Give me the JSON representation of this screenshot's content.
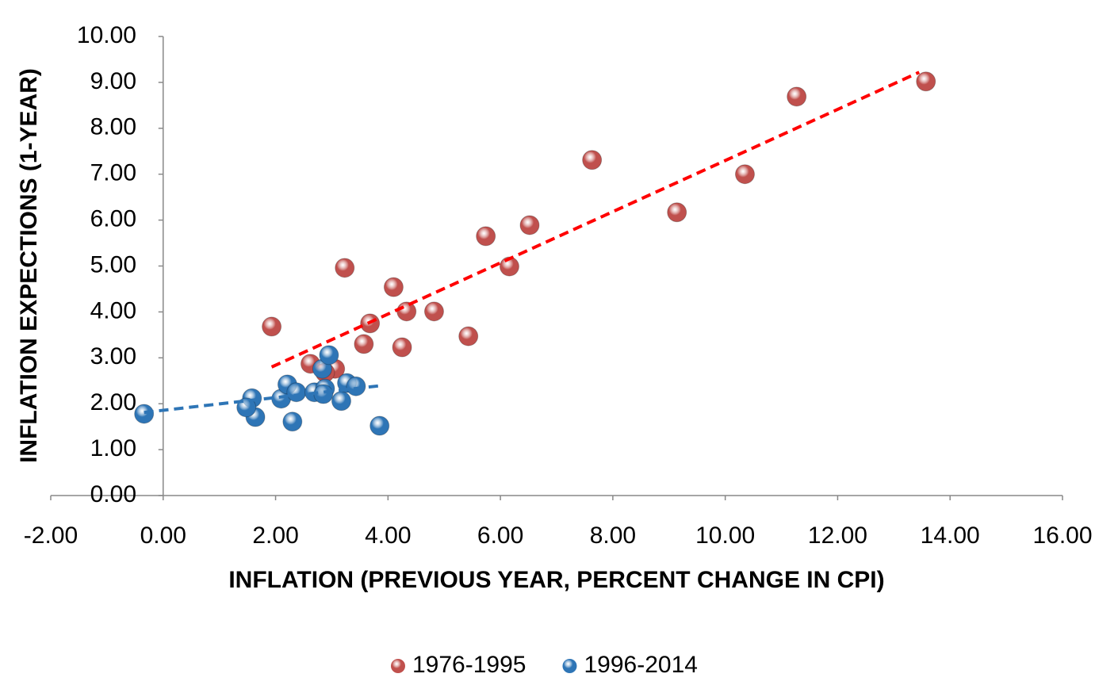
{
  "chart_data": {
    "type": "scatter",
    "x_label": "INFLATION (PREVIOUS YEAR, PERCENT CHANGE IN CPI)",
    "y_label": "INFLATION EXPECTIONS (1-YEAR)",
    "xlim": [
      -2,
      16
    ],
    "xticks": [
      {
        "value": -2,
        "label": "-2.00"
      },
      {
        "value": 0,
        "label": "0.00"
      },
      {
        "value": 2,
        "label": "2.00"
      },
      {
        "value": 4,
        "label": "4.00"
      },
      {
        "value": 6,
        "label": "6.00"
      },
      {
        "value": 8,
        "label": "8.00"
      },
      {
        "value": 10,
        "label": "10.00"
      },
      {
        "value": 12,
        "label": "12.00"
      },
      {
        "value": 14,
        "label": "14.00"
      },
      {
        "value": 16,
        "label": "16.00"
      }
    ],
    "ylim": [
      0,
      10
    ],
    "yticks": [
      {
        "value": 0,
        "label": "0.00"
      },
      {
        "value": 1,
        "label": "1.00"
      },
      {
        "value": 2,
        "label": "2.00"
      },
      {
        "value": 3,
        "label": "3.00"
      },
      {
        "value": 4,
        "label": "4.00"
      },
      {
        "value": 5,
        "label": "5.00"
      },
      {
        "value": 6,
        "label": "6.00"
      },
      {
        "value": 7,
        "label": "7.00"
      },
      {
        "value": 8,
        "label": "8.00"
      },
      {
        "value": 9,
        "label": "9.00"
      },
      {
        "value": 10,
        "label": "10.00"
      }
    ],
    "legend": "bottom",
    "series": [
      {
        "name": "1976-1995",
        "color": "#c0504d",
        "x": [
          1.93,
          3.23,
          4.1,
          3.68,
          3.57,
          4.33,
          4.82,
          4.25,
          5.43,
          5.74,
          6.16,
          6.52,
          7.63,
          9.14,
          10.35,
          11.27,
          13.57,
          2.62,
          3.06,
          2.88
        ],
        "values": [
          3.68,
          4.96,
          4.54,
          3.75,
          3.3,
          4.01,
          4.01,
          3.23,
          3.47,
          5.65,
          4.99,
          5.89,
          7.31,
          6.17,
          7.0,
          8.69,
          9.02,
          2.87,
          2.76,
          2.68
        ],
        "trendline": {
          "color": "#ff0000",
          "x": [
            1.93,
            13.45
          ],
          "y": [
            2.8,
            9.22
          ]
        }
      },
      {
        "name": "1996-2014",
        "color": "#2e75b6",
        "x": [
          -0.34,
          1.58,
          1.64,
          1.48,
          2.1,
          2.21,
          2.37,
          2.3,
          2.69,
          2.83,
          2.95,
          2.88,
          2.85,
          3.17,
          3.27,
          3.43,
          3.85
        ],
        "values": [
          1.78,
          2.12,
          1.71,
          1.92,
          2.11,
          2.42,
          2.25,
          1.61,
          2.25,
          2.76,
          3.06,
          2.33,
          2.21,
          2.06,
          2.45,
          2.38,
          1.52
        ],
        "trendline": {
          "color": "#2e75b6",
          "x": [
            -0.34,
            3.92
          ],
          "y": [
            1.81,
            2.4
          ]
        }
      }
    ]
  }
}
